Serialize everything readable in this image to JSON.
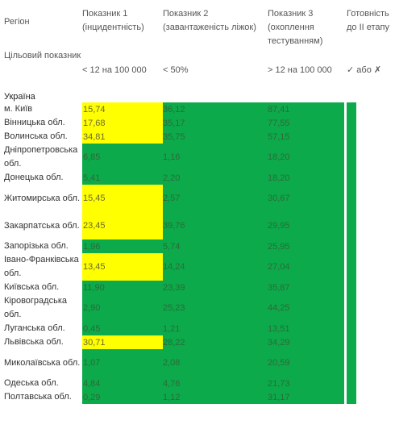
{
  "headers": {
    "region": "Регіон",
    "ind1": "Показник 1 (інцидентність)",
    "ind2": "Показник 2 (завантаженість ліжок)",
    "ind3": "Показник 3 (охоплення тестуванням)",
    "ready": "Готовність до ІІ етапу"
  },
  "target": {
    "label": "Цільовий показник",
    "ind1": "< 12 на 100 000",
    "ind2": "< 50%",
    "ind3": "> 12 на 100 000",
    "ready": "✓ або ✗"
  },
  "country": "Україна",
  "rows": [
    {
      "region": "м. Київ",
      "ind1": "15,74",
      "ind2": "36,12",
      "ind3": "87,41",
      "ready": "✗"
    },
    {
      "region": "Вінницька обл.",
      "ind1": "17,68",
      "ind2": "35,17",
      "ind3": "77,55",
      "ready": "✗"
    },
    {
      "region": "Волинська обл.",
      "ind1": "34,81",
      "ind2": "35,75",
      "ind3": "57,15",
      "ready": "✗"
    },
    {
      "region": "Дніпропетровська обл.",
      "ind1": "6,85",
      "ind2": "1,16",
      "ind3": "18,20",
      "ready": "✓"
    },
    {
      "region": "Донецька обл.",
      "ind1": "5,41",
      "ind2": "2,20",
      "ind3": "18,20",
      "ready": "✓"
    },
    {
      "region": "Житомирська обл.",
      "ind1": "15,45",
      "ind2": "2,57",
      "ind3": "30,67",
      "ready": "✗"
    },
    {
      "region": "Закарпатська обл.",
      "ind1": "23,45",
      "ind2": "39,76",
      "ind3": "29,95",
      "ready": "✗"
    },
    {
      "region": "Запорізька обл.",
      "ind1": "1,96",
      "ind2": "5,74",
      "ind3": "25,95",
      "ready": "✓"
    },
    {
      "region": "Івано-Франківська обл.",
      "ind1": "13,45",
      "ind2": "14,24",
      "ind3": "27,04",
      "ready": "✗"
    },
    {
      "region": "Київська обл.",
      "ind1": "11,90",
      "ind2": "23,39",
      "ind3": "35,87",
      "ready": "✓"
    },
    {
      "region": "Кіровоградська обл.",
      "ind1": "2,90",
      "ind2": "25,23",
      "ind3": "44,25",
      "ready": "✓"
    },
    {
      "region": "Луганська обл.",
      "ind1": "0,45",
      "ind2": "1,21",
      "ind3": "13,51",
      "ready": "✓"
    },
    {
      "region": "Львівська обл.",
      "ind1": "30,71",
      "ind2": "28,22",
      "ind3": "34,29",
      "ready": "✗"
    },
    {
      "region": "Миколаївська обл.",
      "ind1": "1,07",
      "ind2": "2,08",
      "ind3": "20,59",
      "ready": "✓"
    },
    {
      "region": "Одеська обл.",
      "ind1": "4,84",
      "ind2": "4,76",
      "ind3": "21,73",
      "ready": "✓"
    },
    {
      "region": "Полтавська обл.",
      "ind1": "0,29",
      "ind2": "1,12",
      "ind3": "31,17",
      "ready": "✓"
    }
  ],
  "colors": {
    "green": "#0caa4a",
    "yellow": "#ffff00"
  }
}
